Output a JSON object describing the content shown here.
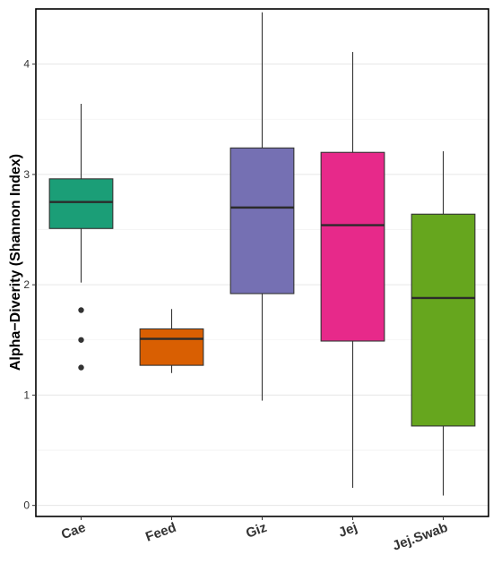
{
  "chart_data": {
    "type": "box",
    "title": "",
    "xlabel": "",
    "ylabel": "Alpha−Diverity (Shannon Index)",
    "ylim": [
      -0.1,
      4.5
    ],
    "yticks": [
      0,
      1,
      2,
      3,
      4
    ],
    "ytick_labels": [
      "0",
      "1",
      "2",
      "3",
      "4"
    ],
    "grid": true,
    "legend": "none",
    "categories": [
      "Cae",
      "Feed",
      "Giz",
      "Jej",
      "Jej.Swab"
    ],
    "boxes": [
      {
        "category": "Cae",
        "whisker_low": 2.02,
        "q1": 2.51,
        "median": 2.75,
        "q3": 2.96,
        "whisker_high": 3.64,
        "outliers": [
          1.77,
          1.5,
          1.25
        ],
        "color": "#1b9e77"
      },
      {
        "category": "Feed",
        "whisker_low": 1.2,
        "q1": 1.27,
        "median": 1.51,
        "q3": 1.6,
        "whisker_high": 1.78,
        "outliers": [],
        "color": "#d95f02"
      },
      {
        "category": "Giz",
        "whisker_low": 0.95,
        "q1": 1.92,
        "median": 2.7,
        "q3": 3.24,
        "whisker_high": 4.47,
        "outliers": [],
        "color": "#7570b3"
      },
      {
        "category": "Jej",
        "whisker_low": 0.16,
        "q1": 1.49,
        "median": 2.54,
        "q3": 3.2,
        "whisker_high": 4.11,
        "outliers": [],
        "color": "#e7298a"
      },
      {
        "category": "Jej.Swab",
        "whisker_low": 0.09,
        "q1": 0.72,
        "median": 1.88,
        "q3": 2.64,
        "whisker_high": 3.21,
        "outliers": [],
        "color": "#66a61e"
      }
    ]
  }
}
